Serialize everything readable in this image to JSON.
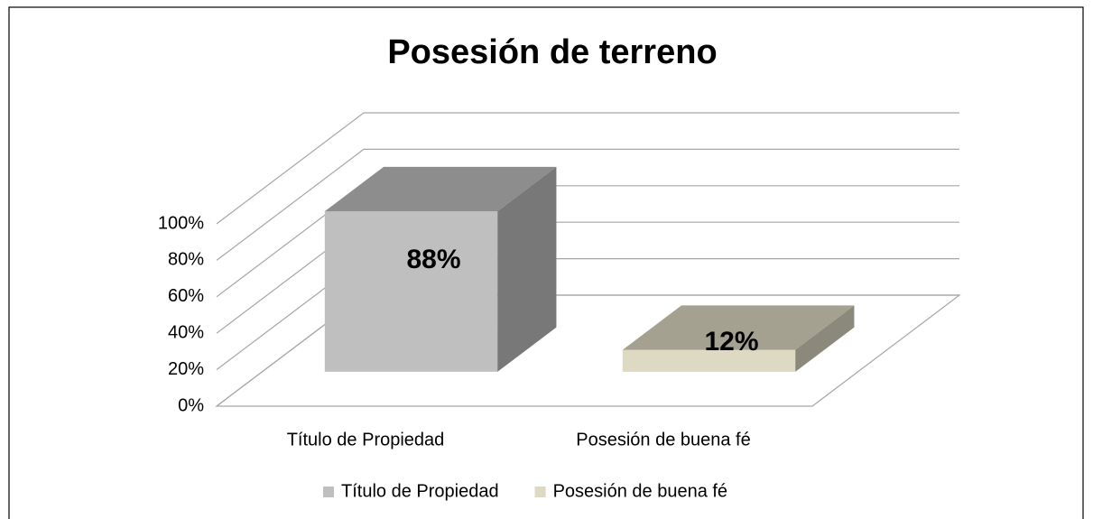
{
  "chart_data": {
    "type": "bar3d",
    "title": "Posesión de terreno",
    "categories": [
      "Título de Propiedad",
      "Posesión de buena fé"
    ],
    "values": [
      88,
      12
    ],
    "value_labels": [
      "88%",
      "12%"
    ],
    "colors": [
      "#bfbfbf",
      "#ddd9c3"
    ],
    "ylim": [
      0,
      100
    ],
    "yticks": [
      {
        "value": 0,
        "label": "0%"
      },
      {
        "value": 20,
        "label": "20%"
      },
      {
        "value": 40,
        "label": "40%"
      },
      {
        "value": 60,
        "label": "60%"
      },
      {
        "value": 80,
        "label": "80%"
      },
      {
        "value": 100,
        "label": "100%"
      }
    ],
    "grid": true,
    "legend": "bottom"
  }
}
